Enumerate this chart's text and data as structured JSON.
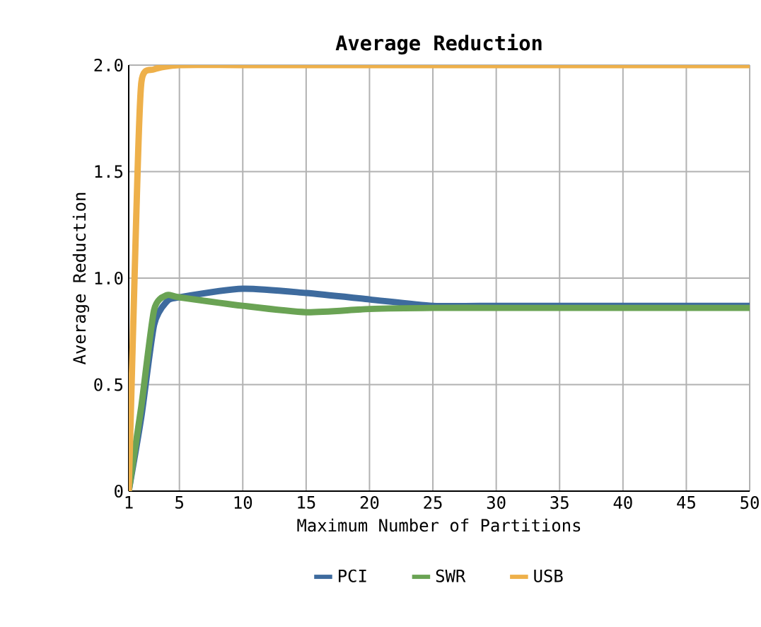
{
  "chart_data": {
    "type": "line",
    "title": "Average Reduction",
    "xlabel": "Maximum Number of Partitions",
    "ylabel": "Average Reduction",
    "xlim": [
      1,
      50
    ],
    "xticks": [
      1,
      5,
      10,
      15,
      20,
      25,
      30,
      35,
      40,
      45,
      50
    ],
    "ylim": [
      0,
      2
    ],
    "yticks": [
      0,
      0.5,
      {
        "value": 1,
        "label": "1.0"
      },
      1.5,
      {
        "value": 2,
        "label": "2.0"
      }
    ],
    "grid": true,
    "legend": "bottom",
    "marker": "none",
    "line_style": "solid",
    "series": [
      {
        "name": "PCI",
        "color": "#3e6b9e",
        "x": [
          1,
          2,
          3,
          4,
          5,
          10,
          15,
          20,
          25,
          30,
          35,
          40,
          45,
          50
        ],
        "values": [
          0,
          0.35,
          0.78,
          0.89,
          0.91,
          0.95,
          0.93,
          0.9,
          0.87,
          0.87,
          0.87,
          0.87,
          0.87,
          0.87
        ]
      },
      {
        "name": "SWR",
        "color": "#6aa354",
        "x": [
          1,
          2,
          3,
          4,
          5,
          10,
          15,
          20,
          25,
          30,
          35,
          40,
          45,
          50
        ],
        "values": [
          0,
          0.4,
          0.85,
          0.92,
          0.91,
          0.87,
          0.84,
          0.855,
          0.86,
          0.86,
          0.86,
          0.86,
          0.86,
          0.86
        ]
      },
      {
        "name": "USB",
        "color": "#eeb04a",
        "x": [
          1,
          1.6,
          2,
          3,
          5,
          10,
          20,
          30,
          40,
          50
        ],
        "values": [
          0,
          1.3,
          1.92,
          1.98,
          2.0,
          2.0,
          2.0,
          2.0,
          2.0,
          2.0
        ]
      }
    ]
  }
}
